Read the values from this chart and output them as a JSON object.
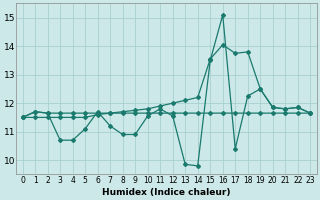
{
  "xlabel": "Humidex (Indice chaleur)",
  "xlim": [
    -0.5,
    23.5
  ],
  "ylim": [
    9.5,
    15.5
  ],
  "yticks": [
    10,
    11,
    12,
    13,
    14,
    15
  ],
  "xticks": [
    0,
    1,
    2,
    3,
    4,
    5,
    6,
    7,
    8,
    9,
    10,
    11,
    12,
    13,
    14,
    15,
    16,
    17,
    18,
    19,
    20,
    21,
    22,
    23
  ],
  "bg_color": "#cce8e8",
  "grid_color": "#a8d0d0",
  "line_color": "#1a7a6e",
  "line1_x": [
    0,
    1,
    2,
    3,
    4,
    5,
    6,
    7,
    8,
    9,
    10,
    11,
    12,
    13,
    14,
    15,
    16,
    17,
    18,
    19,
    20,
    21,
    22,
    23
  ],
  "line1_y": [
    11.5,
    11.7,
    11.65,
    11.65,
    11.65,
    11.65,
    11.65,
    11.65,
    11.65,
    11.65,
    11.65,
    11.65,
    11.65,
    11.65,
    11.65,
    11.65,
    11.65,
    11.65,
    11.65,
    11.65,
    11.65,
    11.65,
    11.65,
    11.65
  ],
  "line2_x": [
    0,
    1,
    2,
    3,
    4,
    5,
    6,
    7,
    8,
    9,
    10,
    11,
    12,
    13,
    14,
    15,
    16,
    17,
    18,
    19,
    20,
    21,
    22,
    23
  ],
  "line2_y": [
    11.5,
    11.7,
    11.65,
    10.7,
    10.7,
    11.1,
    11.7,
    11.2,
    10.9,
    10.9,
    11.55,
    11.8,
    11.55,
    9.85,
    9.8,
    13.5,
    15.1,
    10.4,
    12.25,
    12.5,
    11.85,
    11.8,
    11.85,
    11.65
  ],
  "line3_x": [
    0,
    1,
    2,
    3,
    4,
    5,
    6,
    7,
    8,
    9,
    10,
    11,
    12,
    13,
    14,
    15,
    16,
    17,
    18,
    19,
    20,
    21,
    22,
    23
  ],
  "line3_y": [
    11.5,
    11.5,
    11.5,
    11.5,
    11.5,
    11.5,
    11.6,
    11.65,
    11.7,
    11.75,
    11.8,
    11.9,
    12.0,
    12.1,
    12.2,
    13.55,
    14.05,
    13.75,
    13.8,
    12.5,
    11.85,
    11.8,
    11.85,
    11.65
  ]
}
